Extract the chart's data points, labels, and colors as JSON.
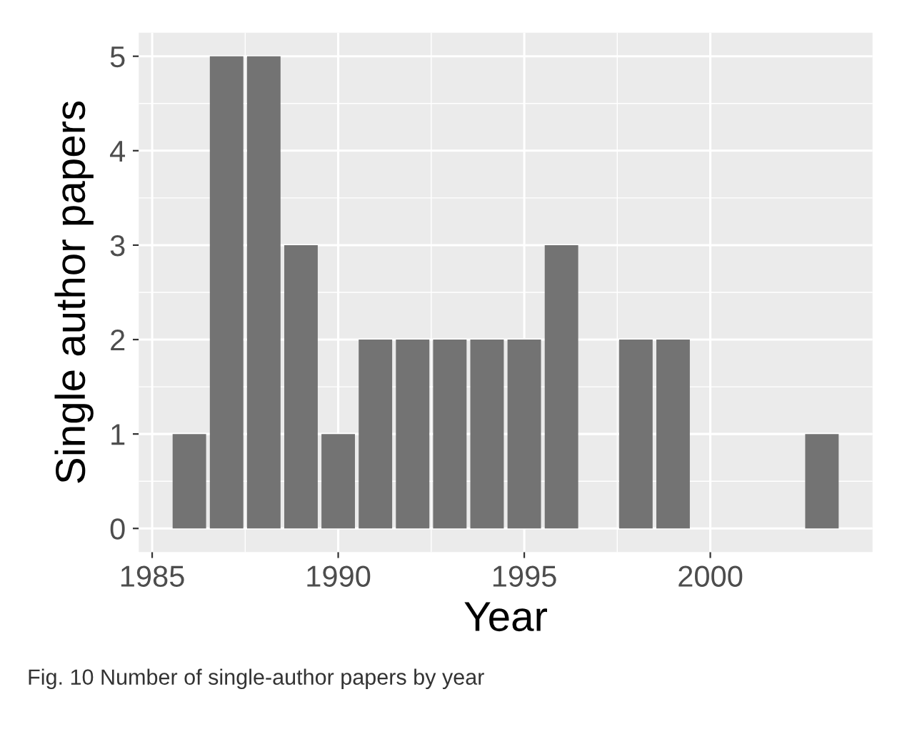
{
  "chart_data": {
    "type": "bar",
    "x": [
      1986,
      1987,
      1988,
      1989,
      1990,
      1991,
      1992,
      1993,
      1994,
      1995,
      1996,
      1998,
      1999,
      2003
    ],
    "values": [
      1,
      5,
      5,
      3,
      1,
      2,
      2,
      2,
      2,
      2,
      3,
      2,
      2,
      1
    ],
    "color": "#737373",
    "xlabel": "Year",
    "ylabel": "Single author papers",
    "xlim": [
      1984.64,
      2004.36
    ],
    "xticks": [
      1985,
      1990,
      1995,
      2000
    ],
    "ylim": [
      -0.25,
      5.25
    ],
    "yticks": [
      0,
      1,
      2,
      3,
      4,
      5
    ],
    "grid": true,
    "annotations": [
      "Fig. 10 Number of single-author papers by year"
    ]
  }
}
